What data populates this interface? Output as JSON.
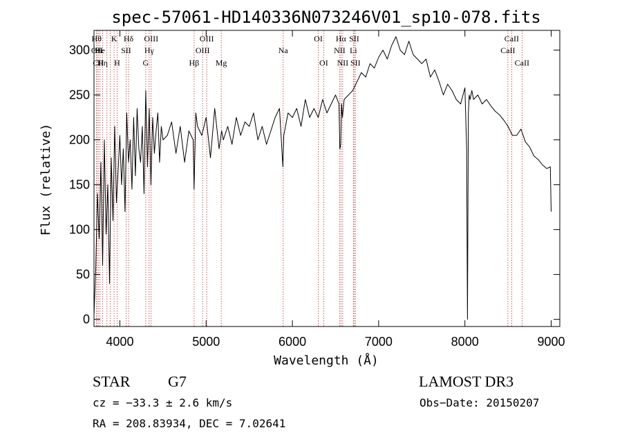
{
  "chart_data": {
    "type": "line",
    "title": "spec-57061-HD140336N073246V01_sp10-078.fits",
    "xlabel": "Wavelength (Å)",
    "ylabel": "Flux (relative)",
    "xlim": [
      3700,
      9100
    ],
    "ylim": [
      -8,
      322
    ],
    "xticks": [
      4000,
      5000,
      6000,
      7000,
      8000,
      9000
    ],
    "yticks": [
      0,
      50,
      100,
      150,
      200,
      250,
      300
    ],
    "series": [
      {
        "name": "flux",
        "x": [
          3700,
          3720,
          3740,
          3760,
          3780,
          3800,
          3820,
          3840,
          3860,
          3880,
          3900,
          3920,
          3940,
          3960,
          3980,
          4000,
          4020,
          4040,
          4060,
          4080,
          4100,
          4120,
          4140,
          4160,
          4180,
          4200,
          4220,
          4240,
          4260,
          4280,
          4300,
          4320,
          4340,
          4360,
          4380,
          4400,
          4420,
          4440,
          4460,
          4480,
          4500,
          4550,
          4600,
          4650,
          4700,
          4750,
          4800,
          4850,
          4860,
          4880,
          4900,
          4950,
          5000,
          5050,
          5100,
          5150,
          5180,
          5200,
          5250,
          5300,
          5350,
          5400,
          5450,
          5500,
          5550,
          5600,
          5650,
          5700,
          5750,
          5800,
          5850,
          5890,
          5900,
          5950,
          6000,
          6050,
          6100,
          6150,
          6200,
          6250,
          6300,
          6350,
          6400,
          6450,
          6500,
          6540,
          6550,
          6560,
          6570,
          6580,
          6600,
          6650,
          6700,
          6750,
          6800,
          6850,
          6900,
          6950,
          7000,
          7050,
          7100,
          7150,
          7200,
          7250,
          7300,
          7350,
          7400,
          7450,
          7500,
          7550,
          7600,
          7650,
          7700,
          7750,
          7800,
          7850,
          7900,
          7950,
          8000,
          8020,
          8030,
          8040,
          8050,
          8060,
          8080,
          8100,
          8150,
          8200,
          8250,
          8300,
          8350,
          8400,
          8450,
          8500,
          8550,
          8600,
          8650,
          8700,
          8750,
          8800,
          8850,
          8900,
          8950,
          8990,
          9000
        ],
        "values": [
          5,
          55,
          140,
          90,
          175,
          60,
          200,
          95,
          150,
          40,
          180,
          110,
          215,
          130,
          165,
          205,
          150,
          190,
          120,
          230,
          175,
          200,
          145,
          225,
          160,
          235,
          190,
          175,
          215,
          140,
          255,
          170,
          235,
          150,
          225,
          185,
          210,
          230,
          175,
          215,
          200,
          205,
          220,
          185,
          215,
          175,
          210,
          200,
          145,
          230,
          215,
          205,
          225,
          180,
          235,
          190,
          210,
          200,
          215,
          195,
          225,
          205,
          220,
          215,
          230,
          200,
          215,
          195,
          210,
          225,
          235,
          170,
          205,
          230,
          225,
          235,
          215,
          245,
          225,
          235,
          225,
          245,
          230,
          240,
          250,
          240,
          190,
          195,
          240,
          225,
          245,
          250,
          255,
          265,
          275,
          270,
          285,
          280,
          292,
          300,
          290,
          305,
          315,
          300,
          295,
          310,
          295,
          290,
          285,
          290,
          270,
          278,
          265,
          250,
          262,
          255,
          245,
          240,
          258,
          190,
          0,
          230,
          250,
          245,
          255,
          245,
          250,
          240,
          245,
          238,
          232,
          228,
          222,
          215,
          205,
          205,
          212,
          198,
          192,
          182,
          178,
          172,
          168,
          170,
          120
        ]
      }
    ],
    "line_markers": [
      {
        "wavelength": 3730,
        "label": "Hθ",
        "row": 1
      },
      {
        "wavelength": 3734,
        "label": "OII",
        "row": 2
      },
      {
        "wavelength": 3750,
        "label": "CII",
        "row": 3
      },
      {
        "wavelength": 3770,
        "label": "He",
        "row": 2
      },
      {
        "wavelength": 3800,
        "label": "Hη",
        "row": 3
      },
      {
        "wavelength": 3850,
        "label": "",
        "row": 0
      },
      {
        "wavelength": 3889,
        "label": "",
        "row": 0
      },
      {
        "wavelength": 3933,
        "label": "K",
        "row": 1
      },
      {
        "wavelength": 3968,
        "label": "H",
        "row": 3
      },
      {
        "wavelength": 4072,
        "label": "SII",
        "row": 2
      },
      {
        "wavelength": 4101,
        "label": "Hδ",
        "row": 1
      },
      {
        "wavelength": 4300,
        "label": "G",
        "row": 3
      },
      {
        "wavelength": 4340,
        "label": "Hγ",
        "row": 2
      },
      {
        "wavelength": 4363,
        "label": "OIII",
        "row": 1
      },
      {
        "wavelength": 4861,
        "label": "Hβ",
        "row": 3
      },
      {
        "wavelength": 4959,
        "label": "OIII",
        "row": 2
      },
      {
        "wavelength": 5007,
        "label": "OIII",
        "row": 1
      },
      {
        "wavelength": 5175,
        "label": "Mg",
        "row": 3
      },
      {
        "wavelength": 5893,
        "label": "Na",
        "row": 2
      },
      {
        "wavelength": 6300,
        "label": "OI",
        "row": 1
      },
      {
        "wavelength": 6363,
        "label": "OI",
        "row": 3
      },
      {
        "wavelength": 6548,
        "label": "NII",
        "row": 2
      },
      {
        "wavelength": 6563,
        "label": "Hα",
        "row": 1
      },
      {
        "wavelength": 6583,
        "label": "NII",
        "row": 3
      },
      {
        "wavelength": 6707,
        "label": "Li",
        "row": 2
      },
      {
        "wavelength": 6716,
        "label": "SII",
        "row": 1
      },
      {
        "wavelength": 6731,
        "label": "SII",
        "row": 3
      },
      {
        "wavelength": 8498,
        "label": "CaII",
        "row": 2
      },
      {
        "wavelength": 8542,
        "label": "CaII",
        "row": 1
      },
      {
        "wavelength": 8662,
        "label": "CaII",
        "row": 3
      }
    ]
  },
  "info": {
    "object_type": "STAR",
    "subclass": "G7",
    "survey": "LAMOST DR3",
    "cz": "cz = −33.3 ± 2.6 km/s",
    "obs_date": "Obs−Date: 20150207",
    "coords": "RA = 208.83934, DEC =    7.02641"
  }
}
